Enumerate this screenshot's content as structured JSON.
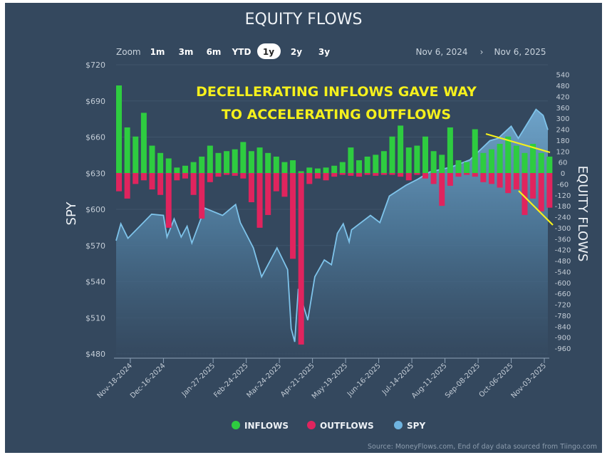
{
  "title": "EQUITY FLOWS",
  "toolbar": {
    "zoom_label": "Zoom",
    "ranges": [
      "1m",
      "3m",
      "6m",
      "YTD",
      "1y",
      "2y",
      "3y"
    ],
    "selected_range": "1y",
    "date_from": "Nov 6, 2024",
    "date_separator": "›",
    "date_to": "Nov 6, 2025"
  },
  "annotation": {
    "line1": "DECELLERATING INFLOWS GAVE WAY",
    "line2": "TO ACCELERATING OUTFLOWS",
    "color": "#f5f01c"
  },
  "source": "Source: MoneyFlows.com, End of day data sourced from Tiingo.com",
  "chart_data": {
    "type": "bar+area",
    "x_range": [
      "2024-11-06",
      "2025-11-06"
    ],
    "x_ticks": [
      "Nov-18-2024",
      "Dec-16-2024",
      "Jan-27-2025",
      "Feb-24-2025",
      "Mar-24-2025",
      "Apr-21-2025",
      "May-19-2025",
      "Jun-16-2025",
      "Jul-14-2025",
      "Aug-11-2025",
      "Sep-08-2025",
      "Oct-06-2025",
      "Nov-03-2025"
    ],
    "x_tick_dates": [
      "2024-11-18",
      "2024-12-16",
      "2025-01-27",
      "2025-02-24",
      "2025-03-24",
      "2025-04-21",
      "2025-05-19",
      "2025-06-16",
      "2025-07-14",
      "2025-08-11",
      "2025-09-08",
      "2025-10-06",
      "2025-11-03"
    ],
    "left_axis": {
      "label": "SPY",
      "ylim": [
        480,
        720
      ],
      "ticks": [
        "$720",
        "$690",
        "$660",
        "$630",
        "$600",
        "$570",
        "$540",
        "$510",
        "$480"
      ],
      "tick_values": [
        720,
        690,
        660,
        630,
        600,
        570,
        540,
        510,
        480
      ]
    },
    "right_axis": {
      "label": "EQUITY FLOWS",
      "ylim": [
        -960,
        540
      ],
      "ticks": [
        540,
        480,
        420,
        360,
        300,
        240,
        180,
        120,
        60,
        0,
        -60,
        -120,
        -180,
        -240,
        -300,
        -360,
        -420,
        -480,
        -540,
        -600,
        -660,
        -720,
        -780,
        -840,
        -900,
        -960
      ]
    },
    "legend": [
      {
        "name": "INFLOWS",
        "color": "#2ecc40"
      },
      {
        "name": "OUTFLOWS",
        "color": "#e0245e"
      },
      {
        "name": "SPY",
        "color": "#6fb4e0"
      }
    ],
    "legend_position": "bottom",
    "grid": true,
    "spy": [
      [
        "2024-11-06",
        574
      ],
      [
        "2024-11-10",
        588
      ],
      [
        "2024-11-16",
        576
      ],
      [
        "2024-12-06",
        596
      ],
      [
        "2024-12-16",
        595
      ],
      [
        "2024-12-19",
        577
      ],
      [
        "2024-12-25",
        592
      ],
      [
        "2024-12-31",
        577
      ],
      [
        "2025-01-05",
        586
      ],
      [
        "2025-01-09",
        572
      ],
      [
        "2025-01-20",
        601
      ],
      [
        "2025-02-04",
        595
      ],
      [
        "2025-02-15",
        604
      ],
      [
        "2025-02-19",
        589
      ],
      [
        "2025-03-02",
        568
      ],
      [
        "2025-03-09",
        544
      ],
      [
        "2025-03-22",
        568
      ],
      [
        "2025-03-31",
        550
      ],
      [
        "2025-04-03",
        501
      ],
      [
        "2025-04-06",
        490
      ],
      [
        "2025-04-09",
        534
      ],
      [
        "2025-04-17",
        508
      ],
      [
        "2025-04-23",
        544
      ],
      [
        "2025-05-01",
        558
      ],
      [
        "2025-05-07",
        554
      ],
      [
        "2025-05-12",
        580
      ],
      [
        "2025-05-17",
        588
      ],
      [
        "2025-05-22",
        573
      ],
      [
        "2025-05-24",
        583
      ],
      [
        "2025-06-09",
        595
      ],
      [
        "2025-06-17",
        589
      ],
      [
        "2025-06-25",
        611
      ],
      [
        "2025-07-09",
        620
      ],
      [
        "2025-07-19",
        625
      ],
      [
        "2025-07-29",
        631
      ],
      [
        "2025-08-16",
        635
      ],
      [
        "2025-09-01",
        641
      ],
      [
        "2025-09-18",
        657
      ],
      [
        "2025-09-25",
        659
      ],
      [
        "2025-10-06",
        669
      ],
      [
        "2025-10-12",
        659
      ],
      [
        "2025-10-27",
        683
      ],
      [
        "2025-11-02",
        678
      ],
      [
        "2025-11-06",
        666
      ]
    ],
    "flows": {
      "start": "2024-11-06",
      "interval_days": 7,
      "inflows": [
        480,
        250,
        200,
        330,
        150,
        110,
        80,
        30,
        40,
        60,
        90,
        150,
        110,
        120,
        130,
        170,
        120,
        140,
        110,
        90,
        60,
        70,
        10,
        30,
        25,
        30,
        40,
        60,
        140,
        70,
        90,
        100,
        120,
        200,
        260,
        140,
        150,
        200,
        120,
        100,
        250,
        70,
        60,
        240,
        110,
        130,
        160,
        200,
        150,
        110,
        160,
        110,
        90
      ],
      "outflows": [
        -100,
        -140,
        -60,
        -40,
        -90,
        -120,
        -300,
        -40,
        -30,
        -120,
        -250,
        -50,
        -20,
        -10,
        -15,
        -30,
        -160,
        -300,
        -230,
        -100,
        -130,
        -470,
        -940,
        -60,
        -30,
        -40,
        -20,
        -10,
        -15,
        -20,
        -10,
        -15,
        -10,
        -10,
        -20,
        -40,
        -10,
        -30,
        -60,
        -180,
        -70,
        -20,
        -10,
        -20,
        -50,
        -60,
        -80,
        -110,
        -90,
        -230,
        -140,
        -210,
        -190
      ]
    }
  }
}
